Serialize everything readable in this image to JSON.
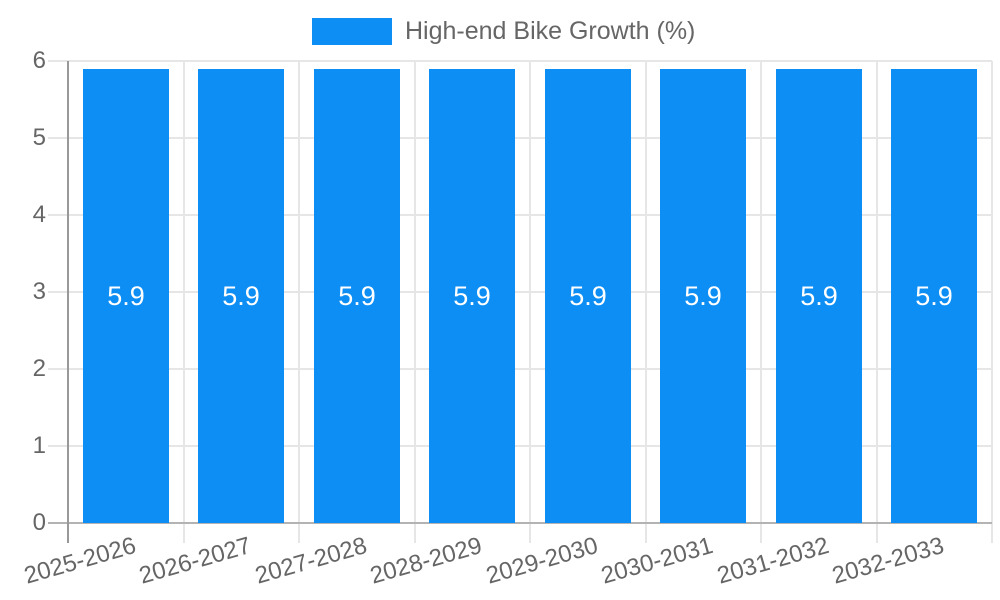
{
  "chart": {
    "colors": {
      "bar": "#0D8EF4",
      "tick_text": "#666666",
      "grid": "#E6E6E6",
      "axis_line": "#999999",
      "baseline": "#B3B3B3",
      "value_label": "#FFFFFF",
      "background": "#FFFFFF"
    }
  },
  "chart_data": {
    "type": "bar",
    "title": "",
    "xlabel": "",
    "ylabel": "",
    "categories": [
      "2025-2026",
      "2026-2027",
      "2027-2028",
      "2028-2029",
      "2029-2030",
      "2030-2031",
      "2031-2032",
      "2032-2033"
    ],
    "series": [
      {
        "name": "High-end Bike Growth (%)",
        "values": [
          5.9,
          5.9,
          5.9,
          5.9,
          5.9,
          5.9,
          5.9,
          5.9
        ]
      }
    ],
    "value_labels": [
      "5.9",
      "5.9",
      "5.9",
      "5.9",
      "5.9",
      "5.9",
      "5.9",
      "5.9"
    ],
    "ylim": [
      0,
      6
    ],
    "yticks": [
      0,
      1,
      2,
      3,
      4,
      5,
      6
    ],
    "grid": true,
    "legend_position": "top-center"
  }
}
